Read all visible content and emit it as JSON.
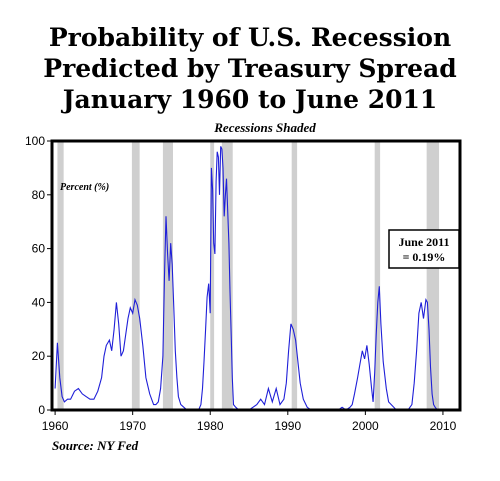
{
  "chart_data": {
    "type": "line",
    "title_lines": [
      "Probability of U.S. Recession",
      "Predicted by Treasury Spread",
      "January 1960 to June 2011"
    ],
    "subtitle": "Recessions Shaded",
    "ylabel": "Percent (%)",
    "source": "Source: NY Fed",
    "xlim": [
      1959.6,
      2012.2
    ],
    "ylim": [
      0,
      100
    ],
    "x_ticks": [
      1960,
      1970,
      1980,
      1990,
      2000,
      2010
    ],
    "y_ticks": [
      0,
      20,
      40,
      60,
      80,
      100
    ],
    "grid": false,
    "line_color": "#1f1fd8",
    "shade_color": "#cfcfcf",
    "recessions": [
      [
        1960.3,
        1961.1
      ],
      [
        1969.9,
        1970.9
      ],
      [
        1973.9,
        1975.2
      ],
      [
        1980.0,
        1980.5
      ],
      [
        1981.5,
        1982.9
      ],
      [
        1990.5,
        1991.2
      ],
      [
        2001.2,
        2001.9
      ],
      [
        2007.9,
        2009.5
      ]
    ],
    "annotation": {
      "lines": [
        "June 2011",
        "= 0.19%"
      ]
    },
    "series": [
      {
        "x": [
          1960.0,
          1960.3,
          1960.6,
          1960.9,
          1961.2,
          1961.6,
          1962.0,
          1962.5,
          1963.0,
          1963.5,
          1964.0,
          1964.5,
          1965.0,
          1965.5,
          1966.0,
          1966.3,
          1966.6,
          1967.0,
          1967.3,
          1967.6,
          1967.9,
          1968.2,
          1968.5,
          1968.8,
          1969.1,
          1969.4,
          1969.7,
          1970.0,
          1970.3,
          1970.6,
          1970.9,
          1971.3,
          1971.7,
          1972.2,
          1972.7,
          1973.0,
          1973.3,
          1973.6,
          1973.9,
          1974.1,
          1974.3,
          1974.5,
          1974.7,
          1974.9,
          1975.1,
          1975.3,
          1975.5,
          1975.7,
          1975.9,
          1976.2,
          1976.6,
          1977.0,
          1977.5,
          1978.0,
          1978.5,
          1978.8,
          1979.0,
          1979.2,
          1979.4,
          1979.6,
          1979.8,
          1980.0,
          1980.15,
          1980.3,
          1980.45,
          1980.6,
          1980.75,
          1980.9,
          1981.05,
          1981.2,
          1981.35,
          1981.5,
          1981.65,
          1981.8,
          1981.95,
          1982.1,
          1982.25,
          1982.4,
          1982.55,
          1982.7,
          1982.85,
          1983.0,
          1983.3,
          1983.7,
          1984.0,
          1984.5,
          1985.0,
          1985.5,
          1986.0,
          1986.5,
          1987.0,
          1987.5,
          1988.0,
          1988.5,
          1989.0,
          1989.5,
          1989.8,
          1990.1,
          1990.4,
          1990.7,
          1991.0,
          1991.3,
          1991.6,
          1992.0,
          1992.5,
          1993.0,
          1994.0,
          1995.0,
          1995.5,
          1996.0,
          1996.5,
          1997.0,
          1997.5,
          1998.0,
          1998.3,
          1998.6,
          1999.0,
          1999.3,
          1999.6,
          1999.9,
          2000.2,
          2000.5,
          2000.8,
          2001.0,
          2001.2,
          2001.4,
          2001.6,
          2001.8,
          2002.0,
          2002.3,
          2002.7,
          2003.0,
          2004.0,
          2005.0,
          2005.5,
          2006.0,
          2006.3,
          2006.6,
          2006.9,
          2007.2,
          2007.5,
          2007.8,
          2008.0,
          2008.2,
          2008.4,
          2008.6,
          2008.8,
          2009.0,
          2009.3,
          2009.6,
          2010.0,
          2010.5,
          2011.0,
          2011.5,
          2012.0
        ],
        "y": [
          8,
          25,
          12,
          5,
          3,
          4,
          4,
          7,
          8,
          6,
          5,
          4,
          4,
          7,
          12,
          20,
          24,
          26,
          22,
          30,
          40,
          32,
          20,
          22,
          28,
          34,
          38,
          36,
          41,
          39,
          34,
          24,
          12,
          6,
          2,
          2,
          3,
          8,
          20,
          50,
          72,
          58,
          48,
          62,
          54,
          38,
          22,
          12,
          5,
          2,
          1,
          0,
          0,
          0,
          0,
          2,
          8,
          18,
          30,
          42,
          47,
          36,
          90,
          82,
          62,
          58,
          85,
          96,
          94,
          80,
          98,
          97,
          90,
          72,
          80,
          86,
          74,
          62,
          44,
          28,
          12,
          2,
          1,
          0,
          0,
          0,
          0,
          1,
          2,
          4,
          2,
          8,
          3,
          8,
          2,
          4,
          10,
          22,
          32,
          30,
          26,
          18,
          10,
          4,
          1,
          0,
          0,
          0,
          0,
          0,
          0,
          1,
          0,
          1,
          2,
          6,
          12,
          17,
          22,
          19,
          24,
          17,
          8,
          3,
          14,
          28,
          40,
          46,
          32,
          18,
          8,
          3,
          0,
          0,
          0,
          2,
          10,
          22,
          36,
          40,
          34,
          41,
          40,
          30,
          16,
          6,
          2,
          1,
          0,
          0,
          0,
          0,
          0,
          0,
          0
        ]
      }
    ]
  }
}
